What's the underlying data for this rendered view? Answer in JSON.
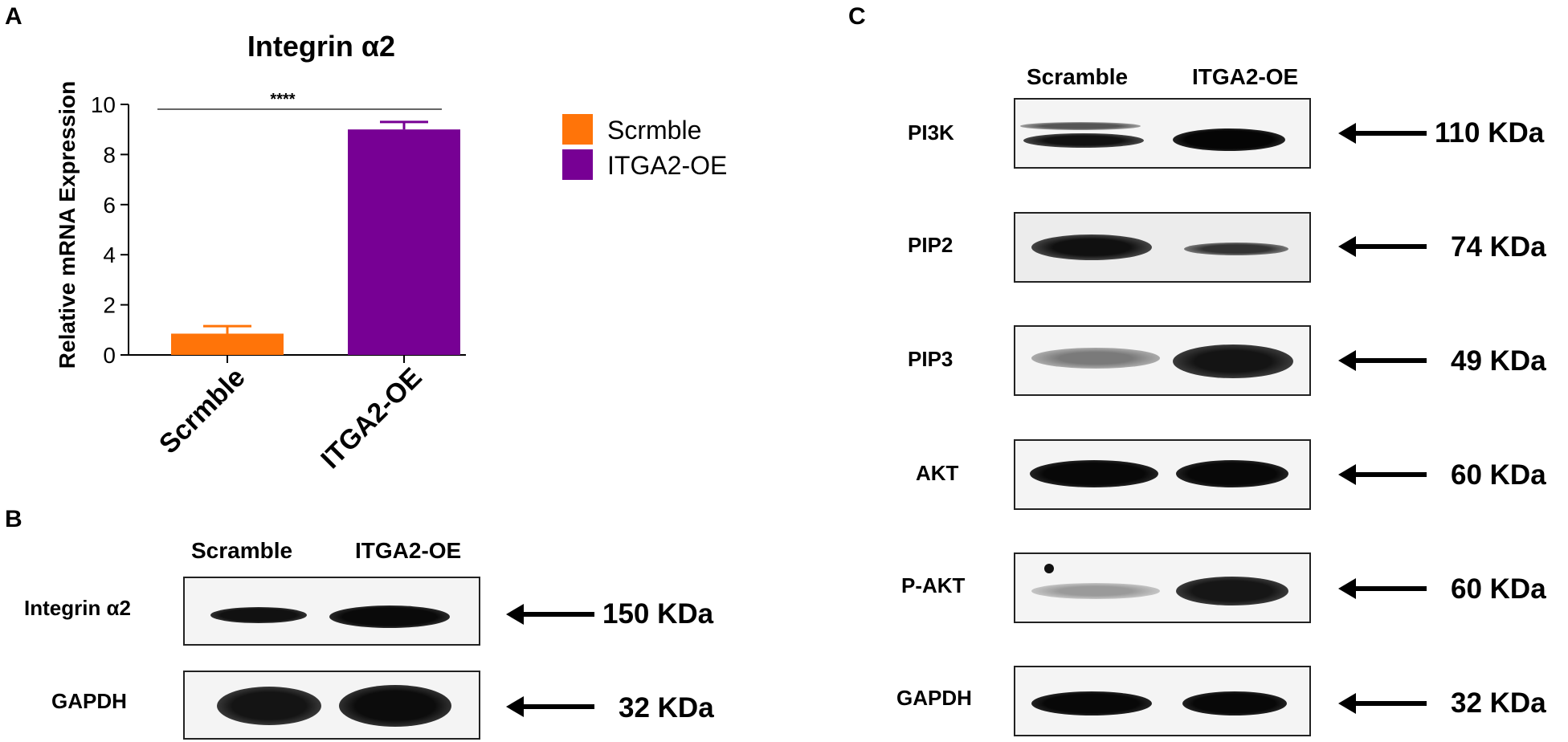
{
  "panels": {
    "a": "A",
    "b": "B",
    "c": "C"
  },
  "chart_data": {
    "type": "bar",
    "title": "Integrin α2",
    "ylabel": "Relative  mRNA Expression",
    "xlabel": "",
    "categories": [
      "Scrmble",
      "ITGA2-OE"
    ],
    "values": [
      0.85,
      9.0
    ],
    "errors": [
      0.3,
      0.3
    ],
    "colors": [
      "#ff7409",
      "#770094"
    ],
    "ylim": [
      0,
      10
    ],
    "yticks": [
      "0",
      "2",
      "4",
      "6",
      "8",
      "10"
    ],
    "yticks_values": [
      0,
      2,
      4,
      6,
      8,
      10
    ],
    "significance": "****",
    "legend": [
      {
        "label": "Scrmble",
        "color": "#ff7409"
      },
      {
        "label": "ITGA2-OE",
        "color": "#770094"
      }
    ],
    "legend_position": "right",
    "grid": false
  },
  "blot_b": {
    "lanes": [
      "Scramble",
      "ITGA2-OE"
    ],
    "rows": [
      {
        "label": "Integrin α2",
        "kda": "150 KDa"
      },
      {
        "label": "GAPDH",
        "kda": "32 KDa"
      }
    ]
  },
  "blot_c": {
    "lanes": [
      "Scramble",
      "ITGA2-OE"
    ],
    "rows": [
      {
        "label": "PI3K",
        "kda": "110 KDa"
      },
      {
        "label": "PIP2",
        "kda": "74 KDa"
      },
      {
        "label": "PIP3",
        "kda": "49 KDa"
      },
      {
        "label": "AKT",
        "kda": "60 KDa"
      },
      {
        "label": "P-AKT",
        "kda": "60 KDa"
      },
      {
        "label": "GAPDH",
        "kda": "32 KDa"
      }
    ]
  }
}
